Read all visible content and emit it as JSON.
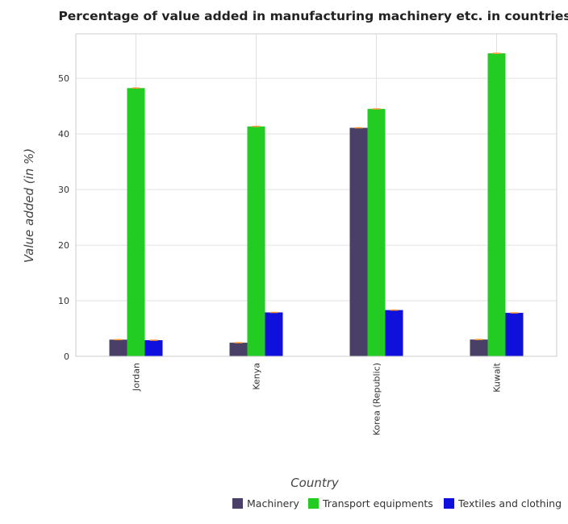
{
  "chart_data": {
    "type": "bar",
    "title": "Percentage of value added in manufacturing machinery etc. in countries",
    "xlabel": "Country",
    "ylabel": "Value added (in %)",
    "categories": [
      "Jordan",
      "Kenya",
      "Korea (Republic)",
      "Kuwait"
    ],
    "series": [
      {
        "name": "Machinery",
        "color": "#4a3f66",
        "values": [
          3.0,
          2.45,
          41.1,
          3.02
        ]
      },
      {
        "name": "Transport equipments",
        "color": "#22cc22",
        "values": [
          48.25,
          41.35,
          44.5,
          54.5
        ]
      },
      {
        "name": "Textiles and clothing",
        "color": "#1010dd",
        "values": [
          2.9,
          7.9,
          8.32,
          7.82
        ]
      }
    ],
    "ylim": [
      0,
      58
    ],
    "yticks": [
      0,
      10,
      20,
      30,
      40,
      50
    ],
    "grid": true,
    "legend_position": "bottom-right"
  }
}
